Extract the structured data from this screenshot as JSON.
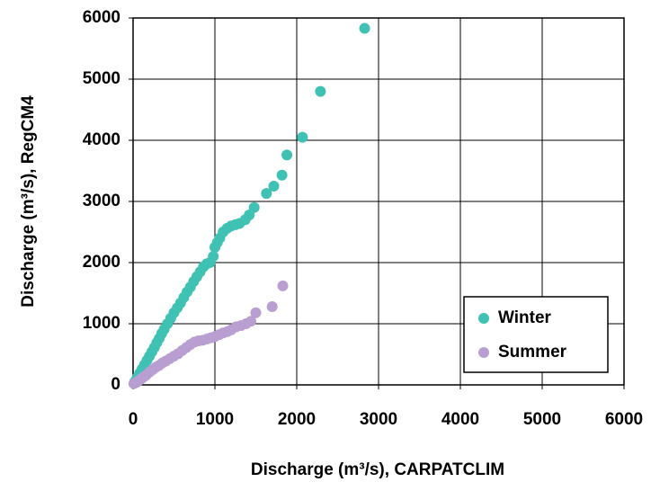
{
  "chart_data": {
    "type": "scatter",
    "xlabel": "Discharge (m³/s), CARPATCLIM",
    "ylabel": "Discharge (m³/s), RegCM4",
    "xlim": [
      0,
      6000
    ],
    "ylim": [
      0,
      6000
    ],
    "xticks": [
      0,
      1000,
      2000,
      3000,
      4000,
      5000,
      6000
    ],
    "yticks": [
      0,
      1000,
      2000,
      3000,
      4000,
      5000,
      6000
    ],
    "grid": true,
    "legend": "lower right",
    "series": [
      {
        "name": "Winter",
        "color": "#3fc1b3",
        "x": [
          20,
          50,
          80,
          110,
          140,
          170,
          200,
          230,
          260,
          290,
          320,
          350,
          380,
          420,
          460,
          500,
          540,
          580,
          620,
          660,
          700,
          740,
          780,
          820,
          860,
          900,
          940,
          980,
          1000,
          1030,
          1060,
          1100,
          1150,
          1200,
          1250,
          1300,
          1370,
          1420,
          1480,
          1630,
          1720,
          1820,
          1880,
          2070,
          2290,
          2830
        ],
        "values": [
          50,
          120,
          190,
          260,
          330,
          400,
          470,
          540,
          610,
          690,
          760,
          840,
          910,
          1000,
          1090,
          1180,
          1260,
          1340,
          1430,
          1520,
          1600,
          1690,
          1770,
          1850,
          1930,
          1980,
          2000,
          2100,
          2250,
          2330,
          2400,
          2500,
          2560,
          2600,
          2620,
          2640,
          2700,
          2780,
          2900,
          3130,
          3250,
          3430,
          3760,
          4050,
          4800,
          5830
        ]
      },
      {
        "name": "Summer",
        "color": "#b99fd1",
        "x": [
          10,
          40,
          70,
          100,
          130,
          160,
          200,
          240,
          280,
          320,
          360,
          400,
          450,
          500,
          550,
          600,
          650,
          700,
          750,
          800,
          850,
          900,
          950,
          1000,
          1050,
          1100,
          1150,
          1200,
          1260,
          1320,
          1380,
          1440,
          1500,
          1700,
          1830
        ],
        "values": [
          20,
          40,
          70,
          100,
          130,
          160,
          210,
          250,
          290,
          320,
          360,
          390,
          430,
          470,
          510,
          560,
          610,
          660,
          700,
          720,
          730,
          750,
          770,
          790,
          820,
          850,
          870,
          900,
          950,
          970,
          1000,
          1040,
          1180,
          1280,
          1620
        ]
      }
    ]
  }
}
